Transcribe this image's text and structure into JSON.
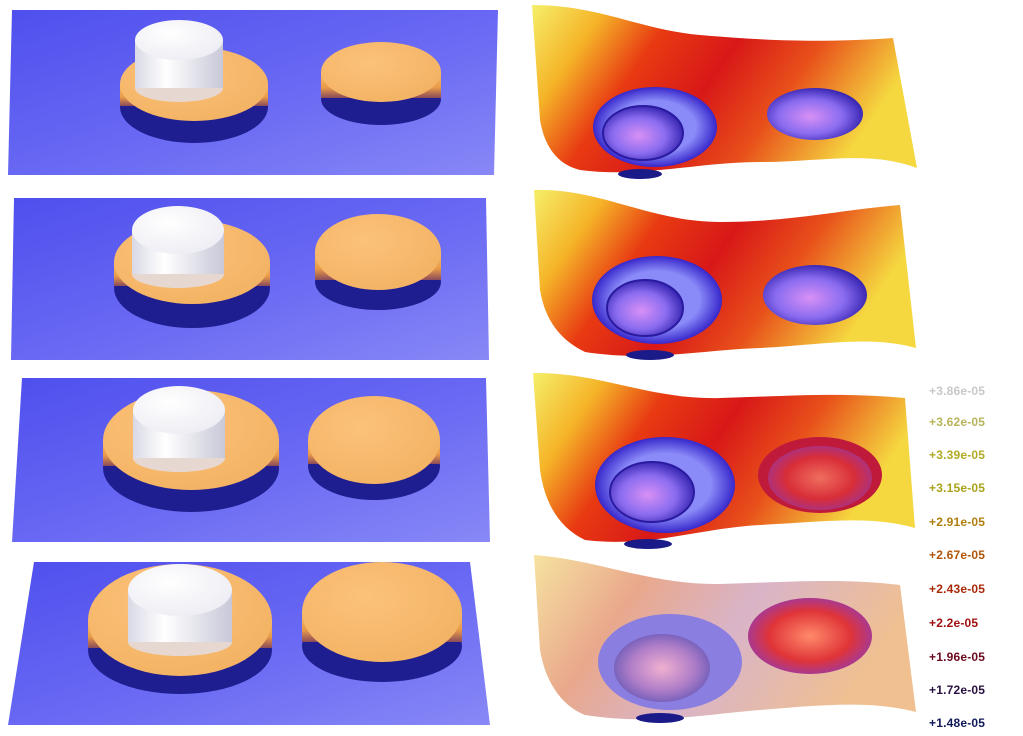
{
  "colorbar": {
    "labels": [
      {
        "text": "+3.86e-05",
        "color": "#c8c8c8"
      },
      {
        "text": "+3.62e-05",
        "color": "#b8b45a"
      },
      {
        "text": "+3.39e-05",
        "color": "#b0aa24"
      },
      {
        "text": "+3.15e-05",
        "color": "#aaa21a"
      },
      {
        "text": "+2.91e-05",
        "color": "#b07e0c"
      },
      {
        "text": "+2.67e-05",
        "color": "#b0560a"
      },
      {
        "text": "+2.43e-05",
        "color": "#a82a0a"
      },
      {
        "text": "+2.2e-05",
        "color": "#a01010"
      },
      {
        "text": "+1.96e-05",
        "color": "#6a0a1e"
      },
      {
        "text": "+1.72e-05",
        "color": "#281040"
      },
      {
        "text": "+1.48e-05",
        "color": "#101858"
      }
    ]
  },
  "colors": {
    "plate": "#5d5df2",
    "disk": "#f5b866",
    "cap": "#ffffff",
    "shadow": "#1a1a88"
  }
}
